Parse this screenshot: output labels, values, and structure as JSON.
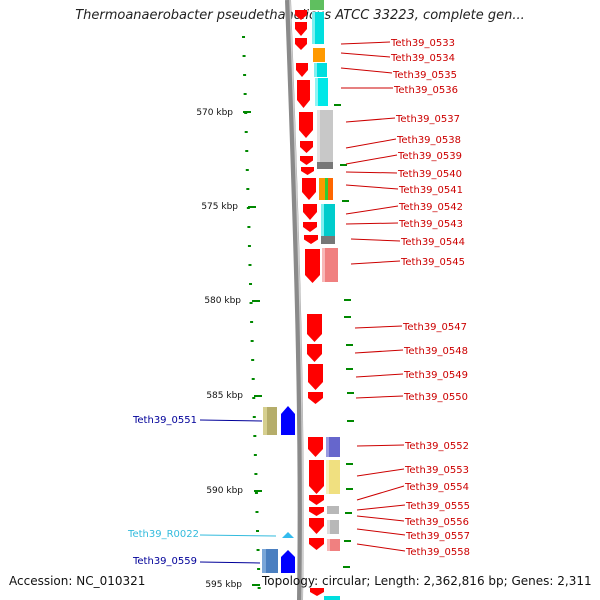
{
  "title": "Thermoanaerobacter pseudethanolicus ATCC 33223, complete gen...",
  "footer": {
    "accession": "Accession: NC_010321",
    "info": "Topology: circular; Length: 2,362,816 bp; Genes: 2,311"
  },
  "colors": {
    "forward_gene": "#ff0000",
    "forward_label": "#cc0000",
    "reverse_label": "#000099",
    "rna_label": "#33bbdd",
    "tick": "#008800",
    "backbone": "#888888"
  },
  "scale_labels": [
    "570 kbp",
    "575 kbp",
    "580 kbp",
    "585 kbp",
    "590 kbp",
    "595 kbp"
  ],
  "right_genes": [
    "Teth39_0533",
    "Teth39_0534",
    "Teth39_0535",
    "Teth39_0536",
    "Teth39_0537",
    "Teth39_0538",
    "Teth39_0539",
    "Teth39_0540",
    "Teth39_0541",
    "Teth39_0542",
    "Teth39_0543",
    "Teth39_0544",
    "Teth39_0545",
    "Teth39_0547",
    "Teth39_0548",
    "Teth39_0549",
    "Teth39_0550",
    "Teth39_0552",
    "Teth39_0553",
    "Teth39_0554",
    "Teth39_0555",
    "Teth39_0556",
    "Teth39_0557",
    "Teth39_0558"
  ],
  "left_genes": [
    {
      "label": "Teth39_0551",
      "type": "gene"
    },
    {
      "label": "Teth39_R0022",
      "type": "rna"
    },
    {
      "label": "Teth39_0559",
      "type": "gene"
    }
  ]
}
